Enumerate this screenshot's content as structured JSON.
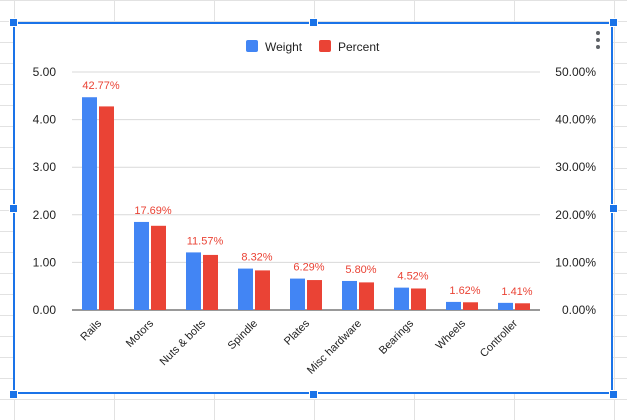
{
  "chart_data": {
    "type": "bar",
    "title": "",
    "xlabel": "",
    "ylabel": "",
    "categories": [
      "Rails",
      "Motors",
      "Nuts & bolts",
      "Spindle",
      "Plates",
      "Misc hardware",
      "Bearings",
      "Wheels",
      "Controller"
    ],
    "series": [
      {
        "name": "Weight",
        "axis": "left",
        "color": "#4285f4",
        "values": [
          4.47,
          1.85,
          1.21,
          0.87,
          0.66,
          0.61,
          0.47,
          0.17,
          0.15
        ]
      },
      {
        "name": "Percent",
        "axis": "right",
        "color": "#ea4335",
        "values": [
          42.77,
          17.69,
          11.57,
          8.32,
          6.29,
          5.8,
          4.52,
          1.62,
          1.41
        ]
      }
    ],
    "data_labels": [
      "42.77%",
      "17.69%",
      "11.57%",
      "8.32%",
      "6.29%",
      "5.80%",
      "4.52%",
      "1.62%",
      "1.41%"
    ],
    "y_left": {
      "ylim": [
        0,
        5
      ],
      "ticks": [
        "0.00",
        "1.00",
        "2.00",
        "3.00",
        "4.00",
        "5.00"
      ]
    },
    "y_right": {
      "ylim": [
        0,
        50
      ],
      "ticks": [
        "0.00%",
        "10.00%",
        "20.00%",
        "30.00%",
        "40.00%",
        "50.00%"
      ]
    },
    "legend": {
      "position": "top-center"
    },
    "grid": true,
    "label_color": "#ea4335"
  }
}
